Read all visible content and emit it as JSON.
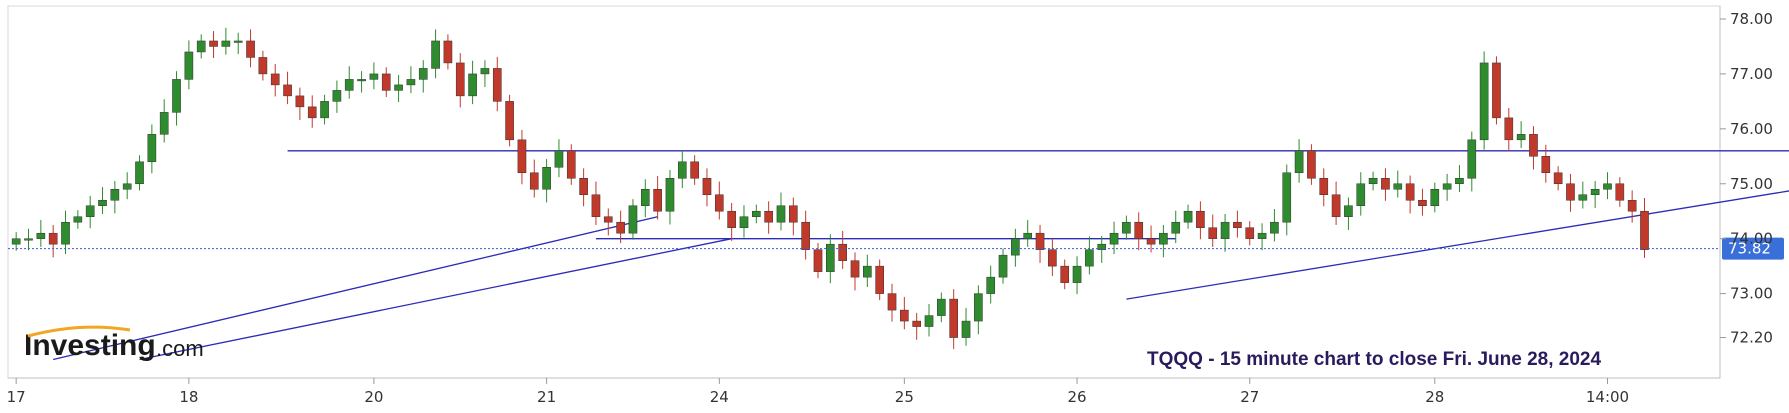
{
  "chart_data": {
    "type": "candlestick",
    "title": "TQQQ - 15 minute chart to close Fri. June 28, 2024",
    "x_labels": [
      "17",
      "18",
      "20",
      "21",
      "24",
      "25",
      "26",
      "27",
      "28",
      "14:00"
    ],
    "y_ticks": [
      "78.00",
      "77.00",
      "76.00",
      "75.00",
      "74.00",
      "73.00",
      "72.20"
    ],
    "ylim": [
      71.5,
      78.2
    ],
    "grid": false,
    "last_price": "73.82",
    "colors": {
      "up": "#2e8b2e",
      "down": "#c0392b",
      "line": "#2b2bb8",
      "price_line": "#3a5fcd",
      "price_tag": "#3a6fd8"
    },
    "closes": [
      74.0,
      74.0,
      74.1,
      73.9,
      74.3,
      74.4,
      74.6,
      74.7,
      74.9,
      75.0,
      75.4,
      75.9,
      76.3,
      76.9,
      77.4,
      77.6,
      77.5,
      77.6,
      77.6,
      77.3,
      77.0,
      76.8,
      76.6,
      76.4,
      76.2,
      76.5,
      76.7,
      76.9,
      76.9,
      77.0,
      76.7,
      76.8,
      76.9,
      77.1,
      77.6,
      77.2,
      76.6,
      77.0,
      77.1,
      76.5,
      75.8,
      75.2,
      74.9,
      75.3,
      75.6,
      75.1,
      74.8,
      74.4,
      74.3,
      74.1,
      74.6,
      74.9,
      74.5,
      75.1,
      75.4,
      75.1,
      74.8,
      74.5,
      74.2,
      74.4,
      74.5,
      74.3,
      74.6,
      74.3,
      73.8,
      73.4,
      73.9,
      73.6,
      73.3,
      73.5,
      73.0,
      72.7,
      72.5,
      72.4,
      72.6,
      72.9,
      72.2,
      72.5,
      73.0,
      73.3,
      73.7,
      74.0,
      74.1,
      73.8,
      73.5,
      73.2,
      73.5,
      73.8,
      73.9,
      74.1,
      74.3,
      74.0,
      73.9,
      74.1,
      74.3,
      74.5,
      74.2,
      74.0,
      74.3,
      74.2,
      74.0,
      74.1,
      74.3,
      75.2,
      75.6,
      75.1,
      74.8,
      74.4,
      74.6,
      75.0,
      75.1,
      74.9,
      75.0,
      74.7,
      74.6,
      74.9,
      75.0,
      75.1,
      75.8,
      77.2,
      76.2,
      75.8,
      75.9,
      75.5,
      75.2,
      75.0,
      74.7,
      74.8,
      74.9,
      75.0,
      74.7,
      74.5,
      73.8
    ],
    "annotations": {
      "resistance_line": {
        "from": [
          22,
          75.6
        ],
        "to": [
          150,
          75.6
        ]
      },
      "upper_trendline": {
        "from": [
          3,
          71.8
        ],
        "to": [
          52,
          74.4
        ]
      },
      "lower_trendline": {
        "from": [
          10,
          71.8
        ],
        "to": [
          58,
          74.0
        ]
      },
      "support_line": {
        "from": [
          47,
          74.0
        ],
        "to": [
          94,
          74.0
        ]
      },
      "rising_trendline": {
        "from": [
          90,
          72.9
        ],
        "to": [
          150,
          75.1
        ]
      }
    }
  },
  "logo": {
    "brand": "Investing",
    "suffix": ".com"
  }
}
